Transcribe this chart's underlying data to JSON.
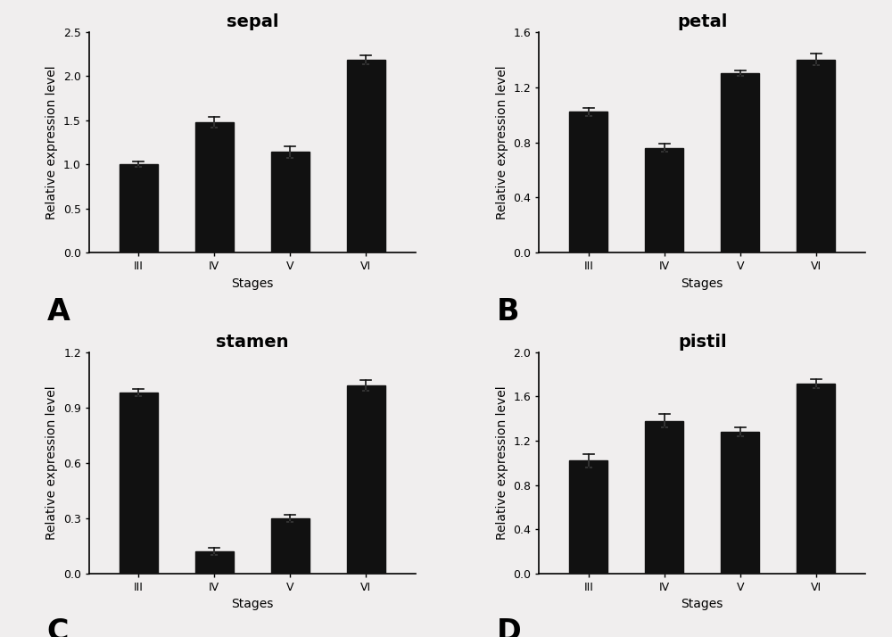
{
  "panels": [
    {
      "label": "A",
      "title": "sepal",
      "categories": [
        "III",
        "IV",
        "V",
        "VI"
      ],
      "values": [
        1.0,
        1.48,
        1.14,
        2.18
      ],
      "errors": [
        0.03,
        0.06,
        0.07,
        0.05
      ],
      "ylim": [
        0,
        2.5
      ],
      "yticks": [
        0.0,
        0.5,
        1.0,
        1.5,
        2.0,
        2.5
      ]
    },
    {
      "label": "B",
      "title": "petal",
      "categories": [
        "III",
        "IV",
        "V",
        "VI"
      ],
      "values": [
        1.02,
        0.76,
        1.3,
        1.4
      ],
      "errors": [
        0.03,
        0.03,
        0.02,
        0.04
      ],
      "ylim": [
        0,
        1.6
      ],
      "yticks": [
        0.0,
        0.4,
        0.8,
        1.2,
        1.6
      ]
    },
    {
      "label": "C",
      "title": "stamen",
      "categories": [
        "III",
        "IV",
        "V",
        "VI"
      ],
      "values": [
        0.98,
        0.12,
        0.3,
        1.02
      ],
      "errors": [
        0.02,
        0.02,
        0.02,
        0.03
      ],
      "ylim": [
        0,
        1.2
      ],
      "yticks": [
        0.0,
        0.3,
        0.6,
        0.9,
        1.2
      ]
    },
    {
      "label": "D",
      "title": "pistil",
      "categories": [
        "III",
        "IV",
        "V",
        "VI"
      ],
      "values": [
        1.02,
        1.38,
        1.28,
        1.72
      ],
      "errors": [
        0.06,
        0.06,
        0.04,
        0.04
      ],
      "ylim": [
        0,
        2.0
      ],
      "yticks": [
        0.0,
        0.4,
        0.8,
        1.2,
        1.6,
        2.0
      ]
    }
  ],
  "bar_color": "#111111",
  "error_color": "#111111",
  "xlabel": "Stages",
  "ylabel": "Relative expression level",
  "background_color": "#f0eeee",
  "bar_width": 0.5,
  "title_fontsize": 14,
  "label_fontsize": 10,
  "tick_fontsize": 9,
  "panel_label_fontsize": 24
}
